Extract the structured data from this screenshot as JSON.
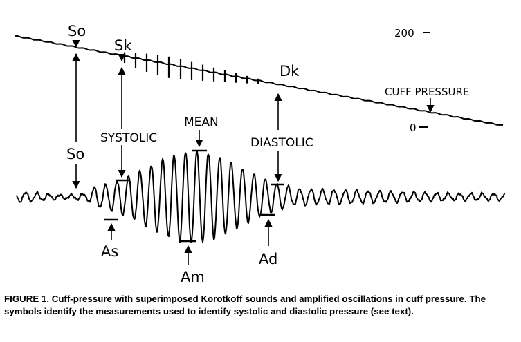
{
  "labels": {
    "so_top": "So",
    "sk": "Sk",
    "dk": "Dk",
    "tick_200": "200",
    "cuff_pressure": "CUFF PRESSURE",
    "tick_0": "0",
    "systolic": "SYSTOLIC",
    "mean": "MEAN",
    "diastolic": "DIASTOLIC",
    "so_mid": "So",
    "as": "As",
    "am": "Am",
    "ad": "Ad"
  },
  "caption": {
    "text": "FIGURE 1.  Cuff-pressure with superimposed Korotkoff sounds and amplified oscillations in cuff pressure. The symbols identify the measurements used to identify systolic and diastolic pressure (see text)."
  },
  "colors": {
    "ink": "#000000",
    "background": "#ffffff"
  }
}
